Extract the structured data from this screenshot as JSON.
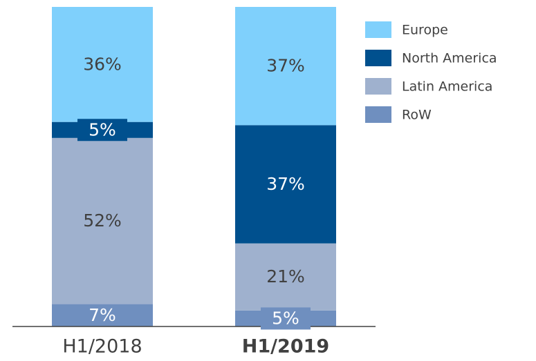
{
  "chart_data": {
    "type": "stacked_bar",
    "categories": [
      "H1/2018",
      "H1/2019"
    ],
    "ylim": [
      0,
      100
    ],
    "series": [
      {
        "name": "RoW",
        "color": "#6f8fbf",
        "values": [
          7,
          5
        ],
        "value_labels": [
          "7%",
          "5%"
        ]
      },
      {
        "name": "Latin America",
        "color": "#9fb1ce",
        "values": [
          52,
          21
        ],
        "value_labels": [
          "52%",
          "21%"
        ]
      },
      {
        "name": "North America",
        "color": "#00508e",
        "values": [
          5,
          37
        ],
        "value_labels": [
          "5%",
          "37%"
        ]
      },
      {
        "name": "Europe",
        "color": "#7fd0fc",
        "values": [
          36,
          37
        ],
        "value_labels": [
          "36%",
          "37%"
        ]
      }
    ]
  }
}
